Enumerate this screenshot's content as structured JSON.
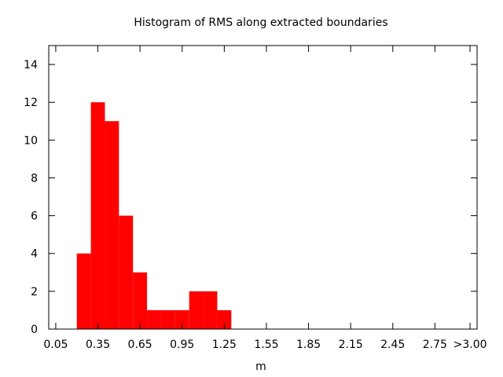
{
  "chart_data": {
    "type": "bar",
    "title": "Histogram of RMS along extracted boundaries",
    "xlabel": "m",
    "ylabel": "",
    "xlim": [
      0.0,
      3.05
    ],
    "ylim": [
      0,
      15
    ],
    "bin_width": 0.1,
    "x_ticks": [
      "0.05",
      "0.35",
      "0.65",
      "0.95",
      "1.25",
      "1.55",
      "1.85",
      "2.15",
      "2.45",
      "2.75",
      ">3.00"
    ],
    "x_tick_values": [
      0.05,
      0.35,
      0.65,
      0.95,
      1.25,
      1.55,
      1.85,
      2.15,
      2.45,
      2.75,
      3.0
    ],
    "y_ticks": [
      0,
      2,
      4,
      6,
      8,
      10,
      12,
      14
    ],
    "series": [
      {
        "color": "#ff0000",
        "bins": [
          {
            "x": 0.25,
            "value": 4
          },
          {
            "x": 0.35,
            "value": 12
          },
          {
            "x": 0.45,
            "value": 11
          },
          {
            "x": 0.55,
            "value": 6
          },
          {
            "x": 0.65,
            "value": 3
          },
          {
            "x": 0.75,
            "value": 1
          },
          {
            "x": 0.85,
            "value": 1
          },
          {
            "x": 0.95,
            "value": 1
          },
          {
            "x": 1.05,
            "value": 2
          },
          {
            "x": 1.15,
            "value": 2
          },
          {
            "x": 1.25,
            "value": 1
          }
        ]
      }
    ],
    "grid": false,
    "legend": "none"
  }
}
